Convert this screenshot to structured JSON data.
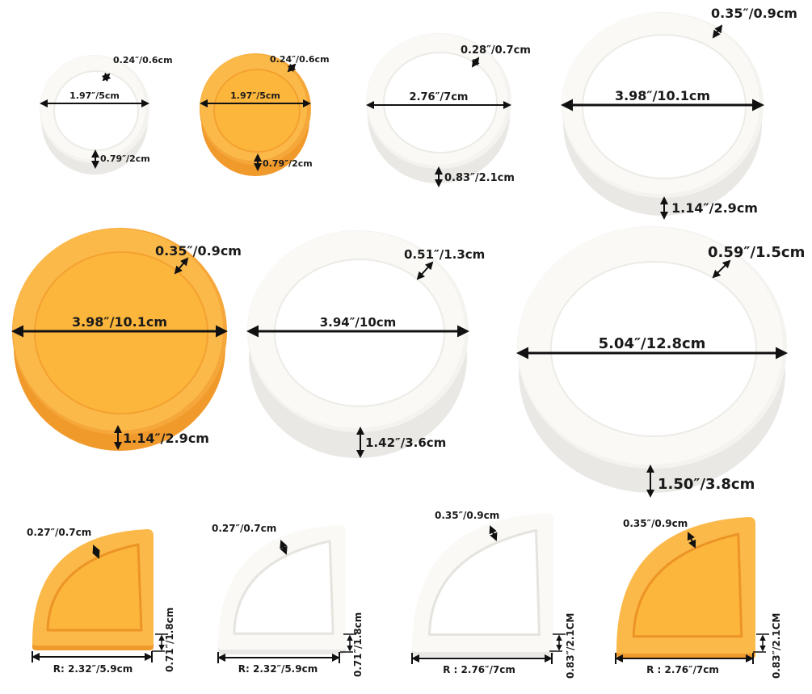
{
  "colors": {
    "white_outer": "#f4f3f0",
    "white_rim": "#faf9f6",
    "white_inner": "#ffffff",
    "white_side": "#e9e8e4",
    "orange_outer": "#f6a73a",
    "orange_rim": "#fbb94a",
    "orange_inner": "#fdb63c",
    "orange_side": "#f19a2c",
    "line": "#111111"
  },
  "round_dishes": [
    {
      "id": "small-white",
      "color": "white",
      "diameter": "1.97″/5cm",
      "rim": "0.24″/0.6cm",
      "height": "0.79″/2cm"
    },
    {
      "id": "small-orange",
      "color": "orange",
      "diameter": "1.97″/5cm",
      "rim": "0.24″/0.6cm",
      "height": "0.79″/2cm"
    },
    {
      "id": "medium-white",
      "color": "white",
      "diameter": "2.76″/7cm",
      "rim": "0.28″/0.7cm",
      "height": "0.83″/2.1cm"
    },
    {
      "id": "large-white",
      "color": "white",
      "diameter": "3.98″/10.1cm",
      "rim": "0.35″/0.9cm",
      "height": "1.14″/2.9cm"
    },
    {
      "id": "large-orange",
      "color": "orange",
      "diameter": "3.98″/10.1cm",
      "rim": "0.35″/0.9cm",
      "height": "1.14″/2.9cm"
    },
    {
      "id": "deep-white",
      "color": "white",
      "diameter": "3.94″/10cm",
      "rim": "0.51″/1.3cm",
      "height": "1.42″/3.6cm"
    },
    {
      "id": "xl-white",
      "color": "white",
      "diameter": "5.04″/12.8cm",
      "rim": "0.59″/1.5cm",
      "height": "1.50″/3.8cm"
    }
  ],
  "corner_dishes": [
    {
      "id": "corner-small-orange",
      "color": "orange",
      "radius": "R: 2.32″/5.9cm",
      "rim": "0.27″/0.7cm",
      "height": "0.71″/1.8cm"
    },
    {
      "id": "corner-small-white",
      "color": "white",
      "radius": "R: 2.32″/5.9cm",
      "rim": "0.27″/0.7cm",
      "height": "0.71″/1.8cm"
    },
    {
      "id": "corner-large-white",
      "color": "white",
      "radius": "R : 2.76″/7cm",
      "rim": "0.35″/0.9cm",
      "height": "0.83″/2.1CM"
    },
    {
      "id": "corner-large-orange",
      "color": "orange",
      "radius": "R : 2.76″/7cm",
      "rim": "0.35″/0.9cm",
      "height": "0.83″/2.1CM"
    }
  ]
}
